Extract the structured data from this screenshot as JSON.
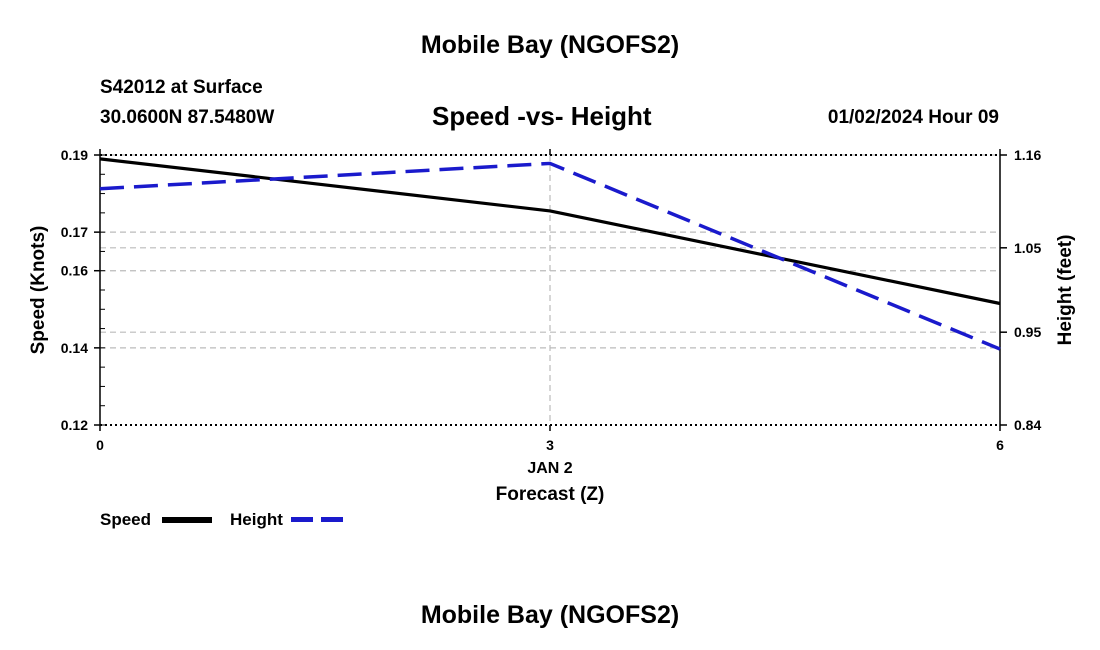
{
  "header": {
    "title": "Mobile Bay (NGOFS2)",
    "station": "S42012 at Surface",
    "coords": "30.0600N  87.5480W",
    "chart_title": "Speed -vs- Height",
    "datetime": "01/02/2024 Hour 09"
  },
  "footer": {
    "title": "Mobile Bay (NGOFS2)"
  },
  "legend": {
    "speed_label": "Speed",
    "height_label": "Height"
  },
  "colors": {
    "speed": "#000000",
    "height": "#1a1acc",
    "grid": "#bbbbbb"
  },
  "chart_data": {
    "type": "line",
    "title": "Speed -vs- Height",
    "xlabel": "Forecast (Z)",
    "xlabel_date": "JAN 2",
    "ylabel": "Speed (Knots)",
    "y2label": "Height (feet)",
    "xlim": [
      0,
      6
    ],
    "ylim": [
      0.12,
      0.19
    ],
    "y2lim": [
      0.84,
      1.16
    ],
    "x_ticks": [
      0,
      3,
      6
    ],
    "x_tick_labels": [
      "0",
      "3",
      "6"
    ],
    "y_ticks": [
      0.12,
      0.14,
      0.16,
      0.17,
      0.19
    ],
    "y_tick_labels": [
      "0.12",
      "0.14",
      "0.16",
      "0.17",
      "0.19"
    ],
    "y2_ticks": [
      0.84,
      0.95,
      1.05,
      1.16
    ],
    "y2_tick_labels": [
      "0.84",
      "0.95",
      "1.05",
      "1.16"
    ],
    "grid": true,
    "series": [
      {
        "name": "Speed",
        "axis": "left",
        "style": "solid",
        "x": [
          0,
          3,
          6
        ],
        "values": [
          0.189,
          0.1755,
          0.1515
        ]
      },
      {
        "name": "Height",
        "axis": "right",
        "style": "dashed",
        "x": [
          0,
          3,
          6
        ],
        "values": [
          1.12,
          1.15,
          0.93
        ]
      }
    ]
  }
}
